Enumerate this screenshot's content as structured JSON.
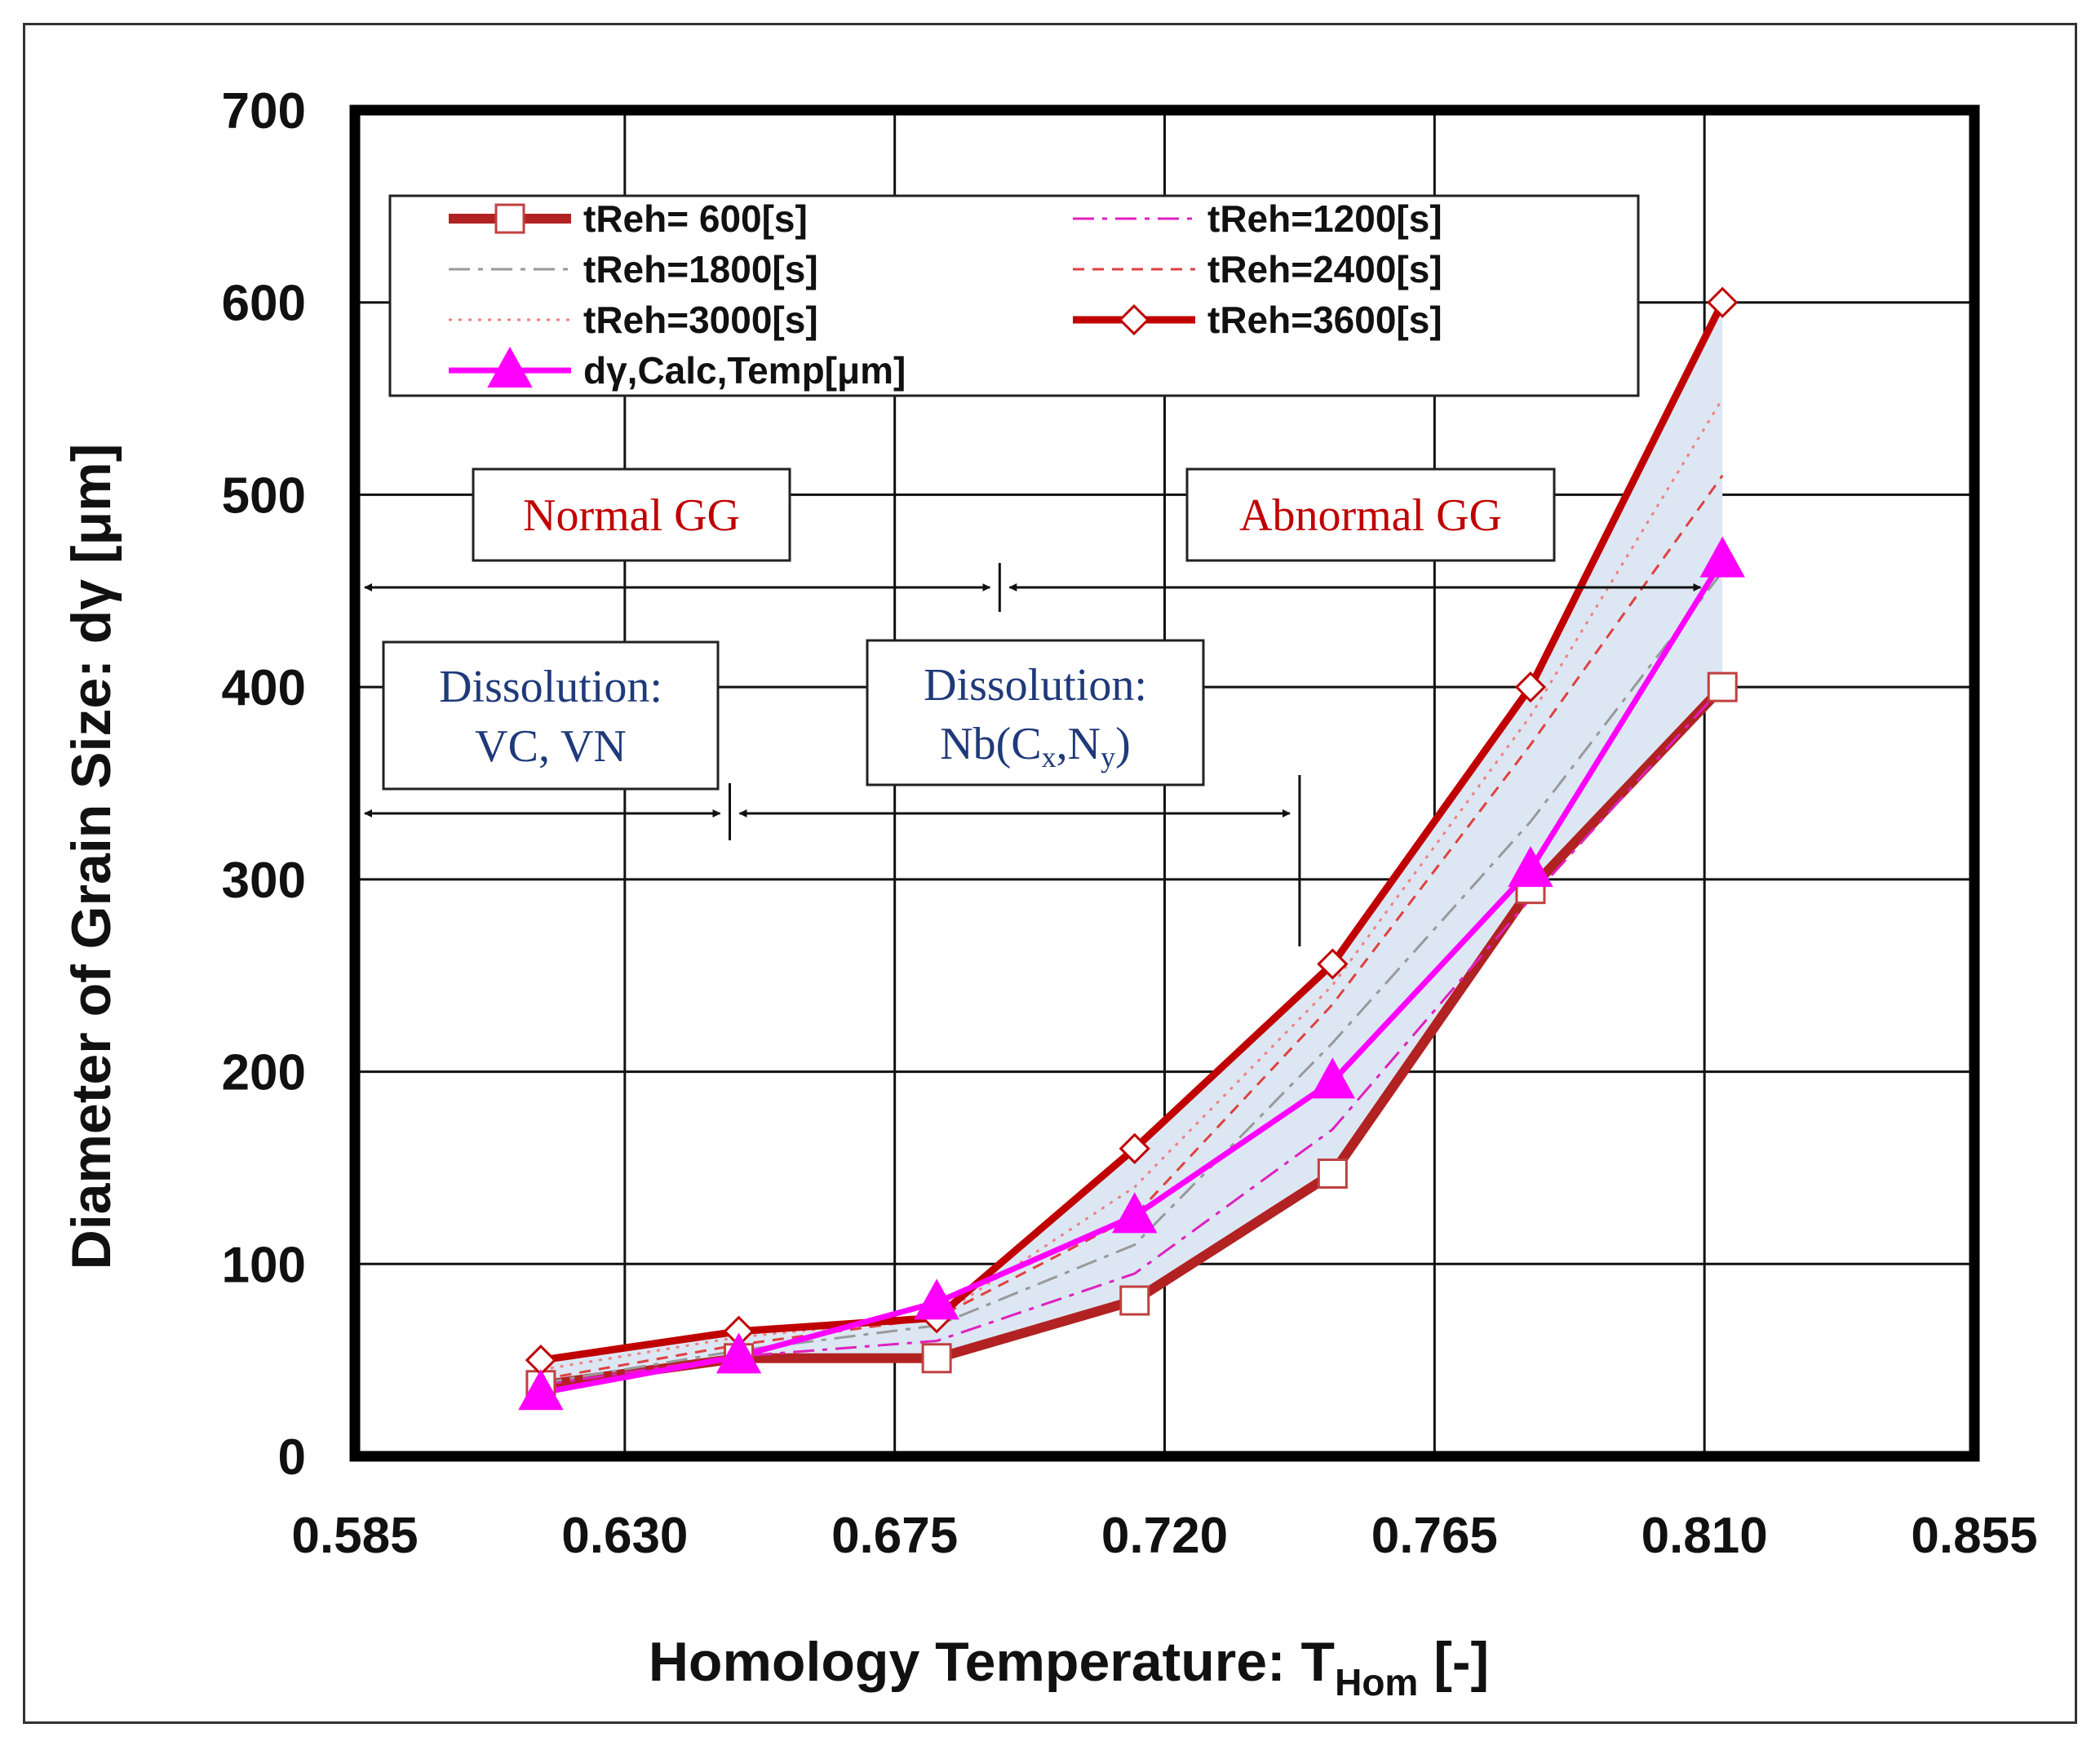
{
  "chart_data": {
    "type": "line",
    "title": "",
    "xlabel": "Homology Temperature: T",
    "xlabel_sub": "Hom",
    "xlabel_suffix": "  [-]",
    "ylabel": "Diameter of Grain Size: dγ  [μm]",
    "xlim": [
      0.585,
      0.855
    ],
    "ylim": [
      0,
      700
    ],
    "xticks": [
      "0.585",
      "0.630",
      "0.675",
      "0.720",
      "0.765",
      "0.810",
      "0.855"
    ],
    "yticks": [
      "0",
      "100",
      "200",
      "300",
      "400",
      "500",
      "600",
      "700"
    ],
    "grid": true,
    "legend_position": "top-left",
    "x": [
      0.616,
      0.649,
      0.682,
      0.715,
      0.748,
      0.781,
      0.813
    ],
    "band": {
      "color": "#dce7f3"
    },
    "series": [
      {
        "name": "tReh=  600[s]",
        "values": [
          37,
          51,
          51,
          81,
          147,
          295,
          400
        ],
        "color": "#b22222",
        "dash": "solid",
        "width": 12,
        "marker": "square-open"
      },
      {
        "name": "tReh=1200[s]",
        "values": [
          37,
          52,
          60,
          95,
          170,
          290,
          400
        ],
        "color": "#e020c0",
        "dash": "dashdot",
        "width": 3,
        "marker": "none"
      },
      {
        "name": "tReh=1800[s]",
        "values": [
          38,
          55,
          68,
          110,
          215,
          330,
          460
        ],
        "color": "#999999",
        "dash": "dashdot",
        "width": 3,
        "marker": "none"
      },
      {
        "name": "tReh=2400[s]",
        "values": [
          40,
          58,
          72,
          125,
          235,
          370,
          510
        ],
        "color": "#e04040",
        "dash": "dashed",
        "width": 3,
        "marker": "none"
      },
      {
        "name": "tReh=3000[s]",
        "values": [
          45,
          62,
          72,
          140,
          245,
          385,
          550
        ],
        "color": "#f08080",
        "dash": "dotted",
        "width": 3,
        "marker": "none"
      },
      {
        "name": "tReh=3600[s]",
        "values": [
          50,
          65,
          72,
          160,
          256,
          400,
          600
        ],
        "color": "#c00000",
        "dash": "solid",
        "width": 9,
        "marker": "diamond-open"
      },
      {
        "name": "dγ,Calc,Temp[μm]",
        "values": [
          33,
          52,
          80,
          125,
          195,
          305,
          466
        ],
        "color": "#ff00ff",
        "dash": "solid",
        "width": 7,
        "marker": "triangle"
      }
    ],
    "annotations": {
      "normal_gg": "Normal GG",
      "abnormal_gg": "Abnormal GG",
      "diss_vc_line1": "Dissolution:",
      "diss_vc_line2": "VC, VN",
      "diss_nb_line1": "Dissolution:",
      "diss_nb_line2_a": "Nb(C",
      "diss_nb_line2_sub1": "x",
      "diss_nb_line2_b": ",N",
      "diss_nb_line2_sub2": "y",
      "diss_nb_line2_c": ")"
    },
    "ranges": {
      "normal_gg": [
        0.585,
        0.6925
      ],
      "abnormal_gg": [
        0.6925,
        0.811
      ],
      "diss_vc": [
        0.585,
        0.6475
      ],
      "diss_nb": [
        0.6475,
        0.7425
      ]
    }
  }
}
